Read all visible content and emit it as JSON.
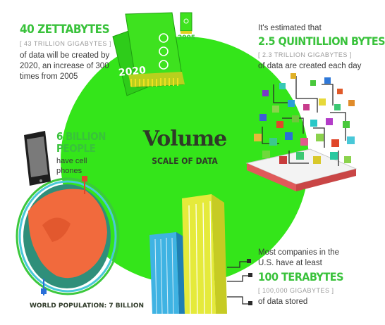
{
  "colors": {
    "accent_green": "#39c23b",
    "circle_green": "#34e51a",
    "globe_orange": "#f16a3d",
    "ocean_teal": "#2f8f7a",
    "building_yellow": "#e5ea3b",
    "building_blue": "#3fb3e3",
    "text_dark": "#3a3a3a"
  },
  "center": {
    "title": "Volume",
    "subtitle": "SCALE OF DATA"
  },
  "zettabytes": {
    "headline": "40 ZETTABYTES",
    "bracket": "[ 43 TRILLION GIGABYTES ]",
    "body": "of data will be created by 2020, an increase of 300 times from 2005"
  },
  "quintillion": {
    "intro": "It's estimated that",
    "headline": "2.5 QUINTILLION BYTES",
    "bracket": "[ 2.3 TRILLION GIGABYTES ]",
    "body": "of data are created each day"
  },
  "phones": {
    "headline_line1": "6 BILLION",
    "headline_line2": "PEOPLE",
    "body": "have cell phones"
  },
  "population": {
    "label": "WORLD POPULATION: 7 BILLION"
  },
  "terabytes": {
    "intro": "Most companies in the U.S. have at least",
    "headline": "100 TERABYTES",
    "bracket": "[ 100,000 GIGABYTES ]",
    "body": "of data stored"
  },
  "cards": {
    "big_label": "2020",
    "small_label": "2005"
  },
  "icons": [
    "memory-card-icon",
    "smartphone-icon",
    "globe-icon",
    "data-blocks-icon",
    "skyscraper-icon"
  ]
}
